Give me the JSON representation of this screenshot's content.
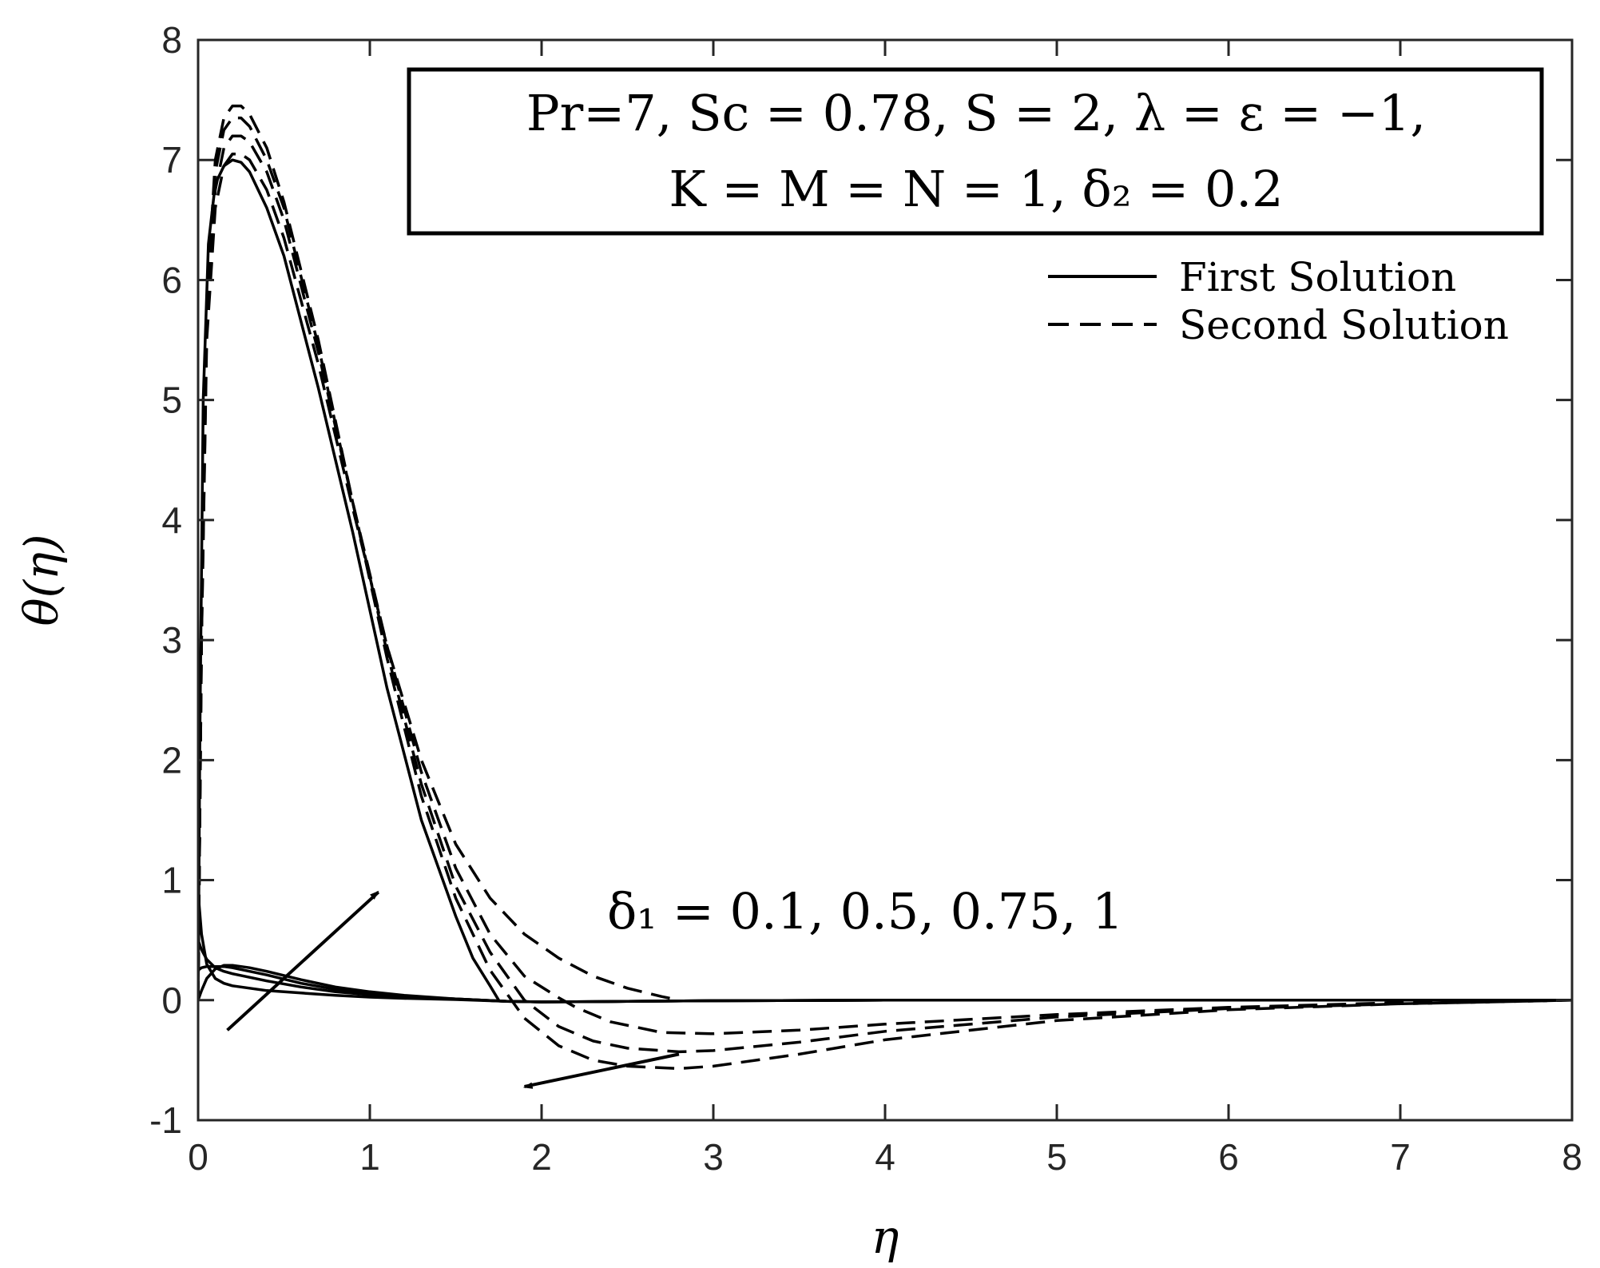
{
  "chart_data": {
    "type": "line",
    "xlabel": "η",
    "ylabel": "θ(η)",
    "xlim": [
      0,
      8
    ],
    "ylim": [
      -1,
      8
    ],
    "x_ticks": [
      "0",
      "1",
      "2",
      "3",
      "4",
      "5",
      "6",
      "7",
      "8"
    ],
    "y_ticks": [
      "-1",
      "0",
      "1",
      "2",
      "3",
      "4",
      "5",
      "6",
      "7",
      "8"
    ],
    "grid": false,
    "legend_position": "top-right",
    "legend": [
      "First Solution",
      "Second Solution"
    ],
    "parameter_box": {
      "line1": "Pr=7, Sc = 0.78, S = 2, λ = ε = −1,",
      "line2": "K = M = N = 1, δ₂ = 0.2"
    },
    "annotation": "δ₁ = 0.1, 0.5, 0.75, 1",
    "arrows": [
      {
        "from": [
          0.17,
          -0.25
        ],
        "to": [
          1.05,
          0.9
        ]
      },
      {
        "from": [
          2.8,
          -0.45
        ],
        "to": [
          1.9,
          -0.72
        ]
      }
    ],
    "series": [
      {
        "style": "solid",
        "x": [
          0,
          0.02,
          0.05,
          0.1,
          0.15,
          0.2,
          0.3,
          0.4,
          0.6,
          0.8,
          1.0,
          1.2,
          1.5,
          1.8,
          2.0,
          2.5,
          3,
          4,
          5,
          6,
          8
        ],
        "y": [
          0,
          0.08,
          0.18,
          0.26,
          0.29,
          0.29,
          0.27,
          0.24,
          0.17,
          0.11,
          0.07,
          0.04,
          0.01,
          -0.01,
          -0.015,
          -0.01,
          -0.005,
          0,
          0,
          0,
          0
        ]
      },
      {
        "style": "solid",
        "x": [
          0,
          0.02,
          0.05,
          0.1,
          0.15,
          0.2,
          0.3,
          0.4,
          0.6,
          0.8,
          1.0,
          1.2,
          1.5,
          1.8,
          2.0,
          2.5,
          3,
          4,
          5,
          6,
          8
        ],
        "y": [
          0.25,
          0.27,
          0.28,
          0.28,
          0.28,
          0.27,
          0.24,
          0.21,
          0.14,
          0.09,
          0.055,
          0.03,
          0.01,
          -0.01,
          -0.015,
          -0.01,
          -0.005,
          0,
          0,
          0,
          0
        ]
      },
      {
        "style": "solid",
        "x": [
          0,
          0.02,
          0.05,
          0.1,
          0.15,
          0.2,
          0.3,
          0.4,
          0.6,
          0.8,
          1.0,
          1.2,
          1.5,
          1.8,
          2.0,
          2.5,
          3,
          4,
          5,
          6,
          8
        ],
        "y": [
          0.5,
          0.42,
          0.34,
          0.27,
          0.24,
          0.22,
          0.19,
          0.16,
          0.11,
          0.07,
          0.045,
          0.025,
          0.01,
          -0.01,
          -0.015,
          -0.01,
          -0.005,
          0,
          0,
          0,
          0
        ]
      },
      {
        "style": "solid",
        "x": [
          0,
          0.02,
          0.05,
          0.1,
          0.15,
          0.2,
          0.3,
          0.4,
          0.6,
          0.8,
          1.0,
          1.2,
          1.5,
          1.8,
          2.0,
          2.5,
          3,
          4,
          5,
          6,
          8
        ],
        "y": [
          0.9,
          0.55,
          0.3,
          0.18,
          0.14,
          0.12,
          0.1,
          0.08,
          0.06,
          0.04,
          0.025,
          0.015,
          0.005,
          -0.01,
          -0.015,
          -0.01,
          -0.005,
          0,
          0,
          0,
          0
        ]
      },
      {
        "style": "solid",
        "x": [
          0,
          0.01,
          0.03,
          0.06,
          0.1,
          0.15,
          0.2,
          0.25,
          0.3,
          0.4,
          0.5,
          0.7,
          0.9,
          1.1,
          1.3,
          1.5,
          1.6,
          1.7,
          1.75
        ],
        "y": [
          0,
          2.2,
          5.0,
          6.3,
          6.8,
          6.95,
          7.0,
          6.98,
          6.9,
          6.6,
          6.2,
          5.1,
          3.9,
          2.6,
          1.5,
          0.7,
          0.35,
          0.12,
          0
        ]
      },
      {
        "style": "dashed",
        "x": [
          0,
          0.02,
          0.05,
          0.1,
          0.15,
          0.2,
          0.25,
          0.3,
          0.4,
          0.5,
          0.7,
          0.9,
          1.1,
          1.3,
          1.5,
          1.7,
          1.9,
          2.1,
          2.3,
          2.5,
          2.7,
          2.8
        ],
        "y": [
          0,
          3.0,
          5.5,
          6.6,
          6.95,
          7.05,
          7.05,
          7.0,
          6.75,
          6.35,
          5.3,
          4.1,
          2.95,
          2.0,
          1.3,
          0.85,
          0.55,
          0.35,
          0.2,
          0.1,
          0.03,
          0
        ]
      },
      {
        "style": "dashed",
        "x": [
          0,
          0.02,
          0.05,
          0.1,
          0.15,
          0.2,
          0.25,
          0.3,
          0.4,
          0.5,
          0.7,
          0.9,
          1.1,
          1.3,
          1.5,
          1.7,
          1.9,
          2.1,
          2.2,
          2.4,
          2.7,
          3.0,
          3.5,
          4.0,
          5.0,
          6.0,
          7.0,
          8.0
        ],
        "y": [
          0,
          3.0,
          5.6,
          6.75,
          7.1,
          7.2,
          7.2,
          7.15,
          6.9,
          6.5,
          5.4,
          4.15,
          2.95,
          1.9,
          1.1,
          0.55,
          0.2,
          0.02,
          -0.06,
          -0.18,
          -0.27,
          -0.28,
          -0.25,
          -0.2,
          -0.12,
          -0.06,
          -0.02,
          0
        ]
      },
      {
        "style": "dashed",
        "x": [
          0,
          0.02,
          0.05,
          0.1,
          0.15,
          0.2,
          0.25,
          0.3,
          0.4,
          0.5,
          0.7,
          0.9,
          1.1,
          1.3,
          1.5,
          1.7,
          1.9,
          2.1,
          2.3,
          2.5,
          2.8,
          3.0,
          3.5,
          4.0,
          5.0,
          6.0,
          7.0,
          8.0
        ],
        "y": [
          0,
          3.1,
          5.7,
          6.9,
          7.25,
          7.35,
          7.35,
          7.28,
          7.0,
          6.6,
          5.45,
          4.15,
          2.9,
          1.8,
          0.95,
          0.4,
          0.0,
          -0.22,
          -0.34,
          -0.4,
          -0.43,
          -0.42,
          -0.35,
          -0.26,
          -0.14,
          -0.07,
          -0.03,
          0
        ]
      },
      {
        "style": "dashed",
        "x": [
          0,
          0.02,
          0.05,
          0.1,
          0.15,
          0.2,
          0.25,
          0.3,
          0.4,
          0.5,
          0.7,
          0.9,
          1.1,
          1.3,
          1.5,
          1.7,
          1.9,
          2.1,
          2.3,
          2.5,
          2.8,
          3.0,
          3.5,
          4.0,
          5.0,
          6.0,
          7.0,
          8.0
        ],
        "y": [
          0,
          3.2,
          5.8,
          7.0,
          7.35,
          7.45,
          7.45,
          7.38,
          7.1,
          6.65,
          5.5,
          4.15,
          2.85,
          1.7,
          0.85,
          0.25,
          -0.15,
          -0.38,
          -0.5,
          -0.55,
          -0.57,
          -0.55,
          -0.45,
          -0.33,
          -0.17,
          -0.08,
          -0.03,
          0
        ]
      }
    ]
  }
}
